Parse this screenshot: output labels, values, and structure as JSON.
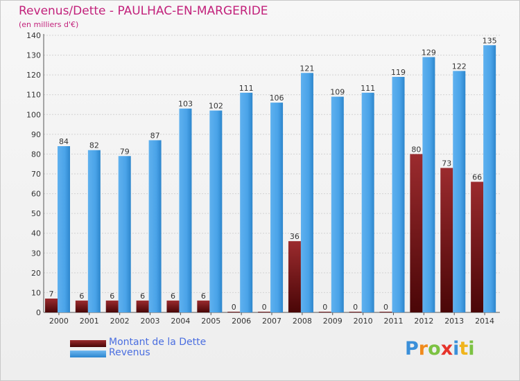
{
  "header": {
    "title": "Revenus/Dette - PAULHAC-EN-MARGERIDE",
    "subtitle": "(en milliers d'€)"
  },
  "colors": {
    "dette": "#6e0f10",
    "revenus": "#3f9be3",
    "title": "#c2217b",
    "legend_text": "#4a6ee0"
  },
  "legend": {
    "items": [
      {
        "label": "Montant de la Dette",
        "color": "#6e0f10"
      },
      {
        "label": "Revenus",
        "color": "#3f9be3"
      }
    ]
  },
  "logo": {
    "text": "Proxiti"
  },
  "chart_data": {
    "type": "bar",
    "title": "Revenus/Dette - PAULHAC-EN-MARGERIDE",
    "ylabel": "(en milliers d'€)",
    "categories": [
      "2000",
      "2001",
      "2002",
      "2003",
      "2004",
      "2005",
      "2006",
      "2007",
      "2008",
      "2009",
      "2010",
      "2011",
      "2012",
      "2013",
      "2014"
    ],
    "series": [
      {
        "name": "Montant de la Dette",
        "values": [
          7,
          6,
          6,
          6,
          6,
          6,
          0,
          0,
          36,
          0,
          0,
          0,
          80,
          73,
          66
        ]
      },
      {
        "name": "Revenus",
        "values": [
          84,
          82,
          79,
          87,
          103,
          102,
          111,
          106,
          121,
          109,
          111,
          119,
          129,
          122,
          135
        ]
      }
    ],
    "ylim": [
      0,
      140
    ],
    "yticks": [
      0,
      10,
      20,
      30,
      40,
      50,
      60,
      70,
      80,
      90,
      100,
      110,
      120,
      130,
      140
    ],
    "grid": true
  }
}
